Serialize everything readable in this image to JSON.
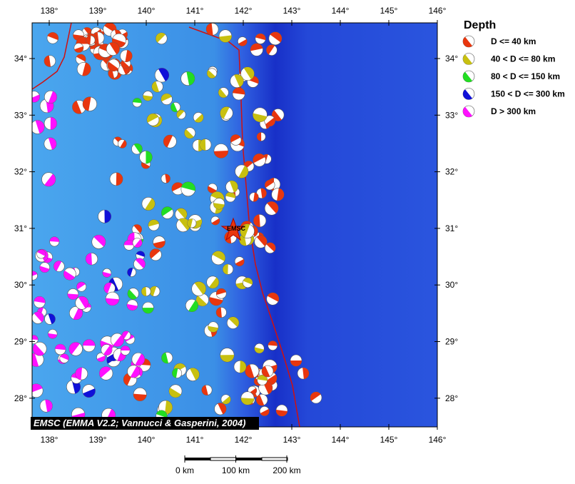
{
  "map": {
    "lon_ticks": [
      {
        "value": 138,
        "label": "138°"
      },
      {
        "value": 139,
        "label": "139°"
      },
      {
        "value": 140,
        "label": "140°"
      },
      {
        "value": 141,
        "label": "141°"
      },
      {
        "value": 142,
        "label": "142°"
      },
      {
        "value": 143,
        "label": "143°"
      },
      {
        "value": 144,
        "label": "144°"
      },
      {
        "value": 145,
        "label": "145°"
      },
      {
        "value": 146,
        "label": "146°"
      }
    ],
    "lat_ticks": [
      {
        "value": 28,
        "label": "28°"
      },
      {
        "value": 29,
        "label": "29°"
      },
      {
        "value": 30,
        "label": "30°"
      },
      {
        "value": 31,
        "label": "31°"
      },
      {
        "value": 32,
        "label": "32°"
      },
      {
        "value": 33,
        "label": "33°"
      },
      {
        "value": 34,
        "label": "34°"
      }
    ],
    "star_label": "EMSC",
    "credit": "EMSC (EMMA V2.2; Vannucci & Gasperini, 2004)",
    "scale": [
      {
        "value": 0,
        "label": "0 km"
      },
      {
        "value": 100,
        "label": "100 km"
      },
      {
        "value": 200,
        "label": "200 km"
      }
    ]
  },
  "legend": {
    "title": "Depth",
    "items": [
      {
        "label": "D <= 40 km",
        "color": "#e8360e"
      },
      {
        "label": "40 < D <= 80 km",
        "color": "#c8c010"
      },
      {
        "label": "80 < D <= 150 km",
        "color": "#22dd22"
      },
      {
        "label": "150 < D <= 300 km",
        "color": "#1010d8"
      },
      {
        "label": "D > 300 km",
        "color": "#ff10ff"
      }
    ]
  }
}
